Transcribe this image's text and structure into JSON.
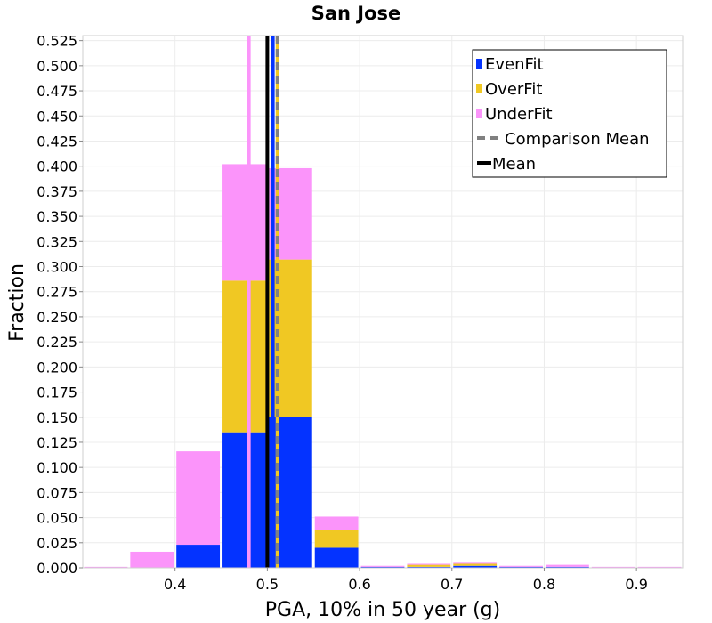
{
  "chart_data": {
    "type": "bar",
    "stacked": true,
    "title": "San Jose",
    "xlabel": "PGA, 10% in 50 year (g)",
    "ylabel": "Fraction",
    "xlim": [
      0.3,
      0.95
    ],
    "ylim": [
      0,
      0.53
    ],
    "x_ticks": [
      0.4,
      0.5,
      0.6,
      0.7,
      0.8,
      0.9
    ],
    "y_ticks": [
      0.0,
      0.025,
      0.05,
      0.075,
      0.1,
      0.125,
      0.15,
      0.175,
      0.2,
      0.225,
      0.25,
      0.275,
      0.3,
      0.325,
      0.35,
      0.375,
      0.4,
      0.425,
      0.45,
      0.475,
      0.5,
      0.525
    ],
    "bin_width": 0.05,
    "bin_centers": [
      0.325,
      0.375,
      0.425,
      0.475,
      0.525,
      0.575,
      0.625,
      0.675,
      0.725,
      0.775,
      0.825,
      0.875,
      0.925
    ],
    "series": [
      {
        "name": "EvenFit",
        "color": "#0433ff",
        "values": [
          0.0,
          0.0,
          0.023,
          0.135,
          0.15,
          0.02,
          0.001,
          0.001,
          0.002,
          0.001,
          0.001,
          0.0,
          0.0
        ]
      },
      {
        "name": "OverFit",
        "color": "#f0c823",
        "values": [
          0.0,
          0.0,
          0.0,
          0.151,
          0.157,
          0.018,
          0.0,
          0.002,
          0.002,
          0.0,
          0.0,
          0.0,
          0.0
        ]
      },
      {
        "name": "UnderFit",
        "color": "#fb94fa",
        "values": [
          0.001,
          0.016,
          0.093,
          0.116,
          0.091,
          0.013,
          0.001,
          0.001,
          0.001,
          0.001,
          0.002,
          0.001,
          0.001
        ]
      }
    ],
    "lines": [
      {
        "name": "Comparison Mean",
        "x": 0.511,
        "color": "#808080",
        "style": "dashed"
      },
      {
        "name": "Mean",
        "x": 0.5,
        "color": "#000000",
        "style": "solid"
      }
    ],
    "marker_lines": [
      {
        "x": 0.48,
        "color": "#fb94fa"
      },
      {
        "x": 0.506,
        "color": "#0433ff"
      },
      {
        "x": 0.511,
        "color": "#f0c823"
      }
    ],
    "legend": {
      "position": "top-right",
      "entries": [
        "EvenFit",
        "OverFit",
        "UnderFit",
        "Comparison Mean",
        "Mean"
      ]
    },
    "grid": true
  }
}
